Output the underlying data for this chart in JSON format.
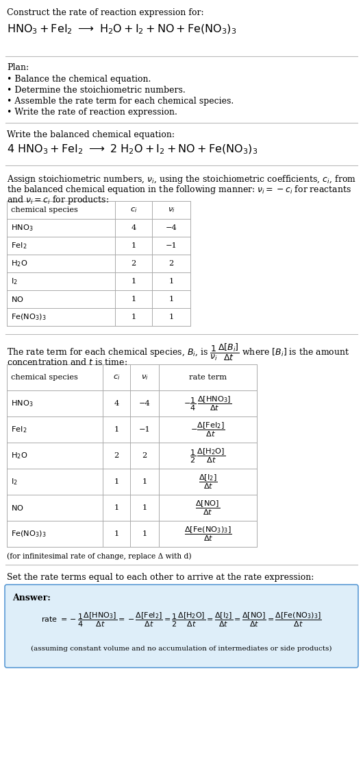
{
  "title_line1": "Construct the rate of reaction expression for:",
  "plan_title": "Plan:",
  "plan_items": [
    "• Balance the chemical equation.",
    "• Determine the stoichiometric numbers.",
    "• Assemble the rate term for each chemical species.",
    "• Write the rate of reaction expression."
  ],
  "balanced_label": "Write the balanced chemical equation:",
  "stoich_line1": "Assign stoichiometric numbers, ",
  "stoich_line2": ", using the stoichiometric coefficients, ",
  "stoich_line3": ", from",
  "stoich_line4": "the balanced chemical equation in the following manner: ",
  "stoich_line5": " for reactants",
  "stoich_line6": "and ",
  "stoich_line7": " for products:",
  "rate_desc1": "The rate term for each chemical species, B",
  "rate_desc2": ", is",
  "rate_desc3": "where [B",
  "rate_desc4": "] is the amount",
  "rate_desc5": "concentration and t is time:",
  "infinitesimal_note": "(for infinitesimal rate of change, replace Δ with d)",
  "set_equal_label": "Set the rate terms equal to each other to arrive at the rate expression:",
  "answer_label": "Answer:",
  "assuming_note": "(assuming constant volume and no accumulation of intermediates or side products)",
  "answer_box_color": "#deeef9",
  "answer_box_border": "#5b9bd5",
  "bg_color": "#ffffff",
  "text_color": "#000000",
  "table_border_color": "#aaaaaa",
  "section_line_color": "#bbbbbb",
  "table1_data_ci": [
    "4",
    "1",
    "2",
    "1",
    "1",
    "1"
  ],
  "table1_data_ni": [
    "−4",
    "−1",
    "2",
    "1",
    "1",
    "1"
  ]
}
